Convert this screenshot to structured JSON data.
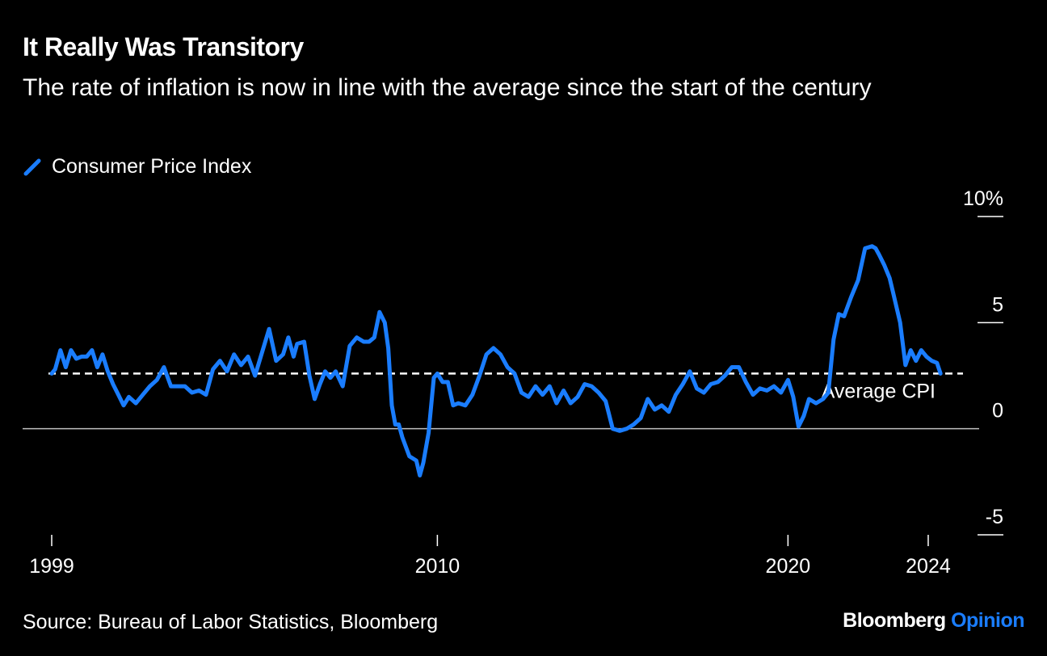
{
  "title": "It Really Was Transitory",
  "subtitle": "The rate of inflation is now in line with the average since the start of the century",
  "legend_label": "Consumer Price Index",
  "source": "Source: Bureau of Labor Statistics, Bloomberg",
  "brand": {
    "name": "Bloomberg",
    "suffix": "Opinion"
  },
  "colors": {
    "series": "#1a7dff",
    "background": "#000000",
    "text": "#ffffff"
  },
  "chart_data": {
    "type": "line",
    "title": "It Really Was Transitory",
    "subtitle": "The rate of inflation is now in line with the average since the start of the century",
    "ylim": [
      -5,
      10
    ],
    "xlim": [
      1999,
      2024.6
    ],
    "y_ticks": [
      10,
      5,
      0,
      -5
    ],
    "y_tick_labels": [
      "10%",
      "5",
      "0",
      "-5"
    ],
    "x_ticks": [
      1999,
      2010,
      2020,
      2024
    ],
    "x_tick_labels": [
      "1999",
      "2010",
      "2020",
      "2024"
    ],
    "grid": false,
    "legend": "top-left",
    "reference_line": {
      "label": "Average CPI",
      "value": 2.6,
      "style": "dashed"
    },
    "series": [
      {
        "name": "Consumer Price Index",
        "x": [
          1999.0,
          1999.1,
          1999.25,
          1999.4,
          1999.55,
          1999.7,
          1999.85,
          2000.0,
          2000.15,
          2000.3,
          2000.45,
          2000.6,
          2000.75,
          2000.9,
          2001.05,
          2001.2,
          2001.4,
          2001.6,
          2001.8,
          2002.0,
          2002.2,
          2002.4,
          2002.6,
          2002.8,
          2003.0,
          2003.2,
          2003.4,
          2003.6,
          2003.8,
          2004.0,
          2004.2,
          2004.4,
          2004.6,
          2004.8,
          2005.0,
          2005.2,
          2005.4,
          2005.6,
          2005.75,
          2005.9,
          2006.0,
          2006.2,
          2006.35,
          2006.5,
          2006.65,
          2006.8,
          2006.95,
          2007.1,
          2007.3,
          2007.5,
          2007.7,
          2007.9,
          2008.05,
          2008.2,
          2008.35,
          2008.5,
          2008.6,
          2008.7,
          2008.8,
          2008.9,
          2009.0,
          2009.2,
          2009.4,
          2009.5,
          2009.6,
          2009.75,
          2009.9,
          2010.0,
          2010.15,
          2010.3,
          2010.45,
          2010.6,
          2010.8,
          2011.0,
          2011.2,
          2011.4,
          2011.6,
          2011.8,
          2012.0,
          2012.2,
          2012.4,
          2012.6,
          2012.8,
          2013.0,
          2013.2,
          2013.4,
          2013.6,
          2013.8,
          2014.0,
          2014.2,
          2014.4,
          2014.6,
          2014.8,
          2015.0,
          2015.2,
          2015.4,
          2015.6,
          2015.8,
          2016.0,
          2016.2,
          2016.4,
          2016.6,
          2016.8,
          2017.0,
          2017.2,
          2017.4,
          2017.6,
          2017.8,
          2018.0,
          2018.2,
          2018.4,
          2018.6,
          2018.8,
          2019.0,
          2019.2,
          2019.4,
          2019.6,
          2019.8,
          2020.0,
          2020.15,
          2020.3,
          2020.45,
          2020.6,
          2020.8,
          2021.0,
          2021.15,
          2021.3,
          2021.45,
          2021.6,
          2021.8,
          2022.0,
          2022.2,
          2022.4,
          2022.5,
          2022.6,
          2022.75,
          2022.9,
          2023.0,
          2023.2,
          2023.35,
          2023.5,
          2023.65,
          2023.8,
          2023.95,
          2024.1,
          2024.25,
          2024.35
        ],
        "values": [
          2.6,
          2.8,
          3.7,
          2.9,
          3.7,
          3.3,
          3.4,
          3.4,
          3.7,
          2.9,
          3.5,
          2.7,
          2.1,
          1.6,
          1.1,
          1.5,
          1.2,
          1.6,
          2.0,
          2.3,
          2.9,
          2.0,
          2.0,
          2.0,
          1.7,
          1.8,
          1.6,
          2.8,
          3.2,
          2.7,
          3.5,
          3.0,
          3.4,
          2.5,
          3.6,
          4.7,
          3.2,
          3.5,
          4.3,
          3.4,
          4.0,
          4.1,
          2.5,
          1.4,
          2.1,
          2.7,
          2.4,
          2.7,
          2.0,
          3.9,
          4.3,
          4.1,
          4.1,
          4.3,
          5.5,
          5.0,
          3.8,
          1.1,
          0.2,
          0.2,
          -0.4,
          -1.3,
          -1.5,
          -2.2,
          -1.6,
          -0.2,
          2.4,
          2.6,
          2.2,
          2.2,
          1.1,
          1.2,
          1.1,
          1.6,
          2.5,
          3.5,
          3.8,
          3.5,
          2.9,
          2.6,
          1.7,
          1.5,
          2.0,
          1.6,
          2.0,
          1.2,
          1.8,
          1.2,
          1.5,
          2.1,
          2.0,
          1.7,
          1.3,
          0.0,
          -0.1,
          0.0,
          0.2,
          0.5,
          1.4,
          0.9,
          1.1,
          0.8,
          1.6,
          2.1,
          2.7,
          1.9,
          1.7,
          2.1,
          2.2,
          2.5,
          2.9,
          2.9,
          2.2,
          1.6,
          1.9,
          1.8,
          2.0,
          1.7,
          2.3,
          1.5,
          0.1,
          0.6,
          1.4,
          1.2,
          1.4,
          1.7,
          4.2,
          5.4,
          5.3,
          6.2,
          7.0,
          8.5,
          8.6,
          8.5,
          8.2,
          7.7,
          7.1,
          6.4,
          5.0,
          3.0,
          3.7,
          3.2,
          3.7,
          3.4,
          3.2,
          3.1,
          2.6
        ]
      }
    ]
  }
}
